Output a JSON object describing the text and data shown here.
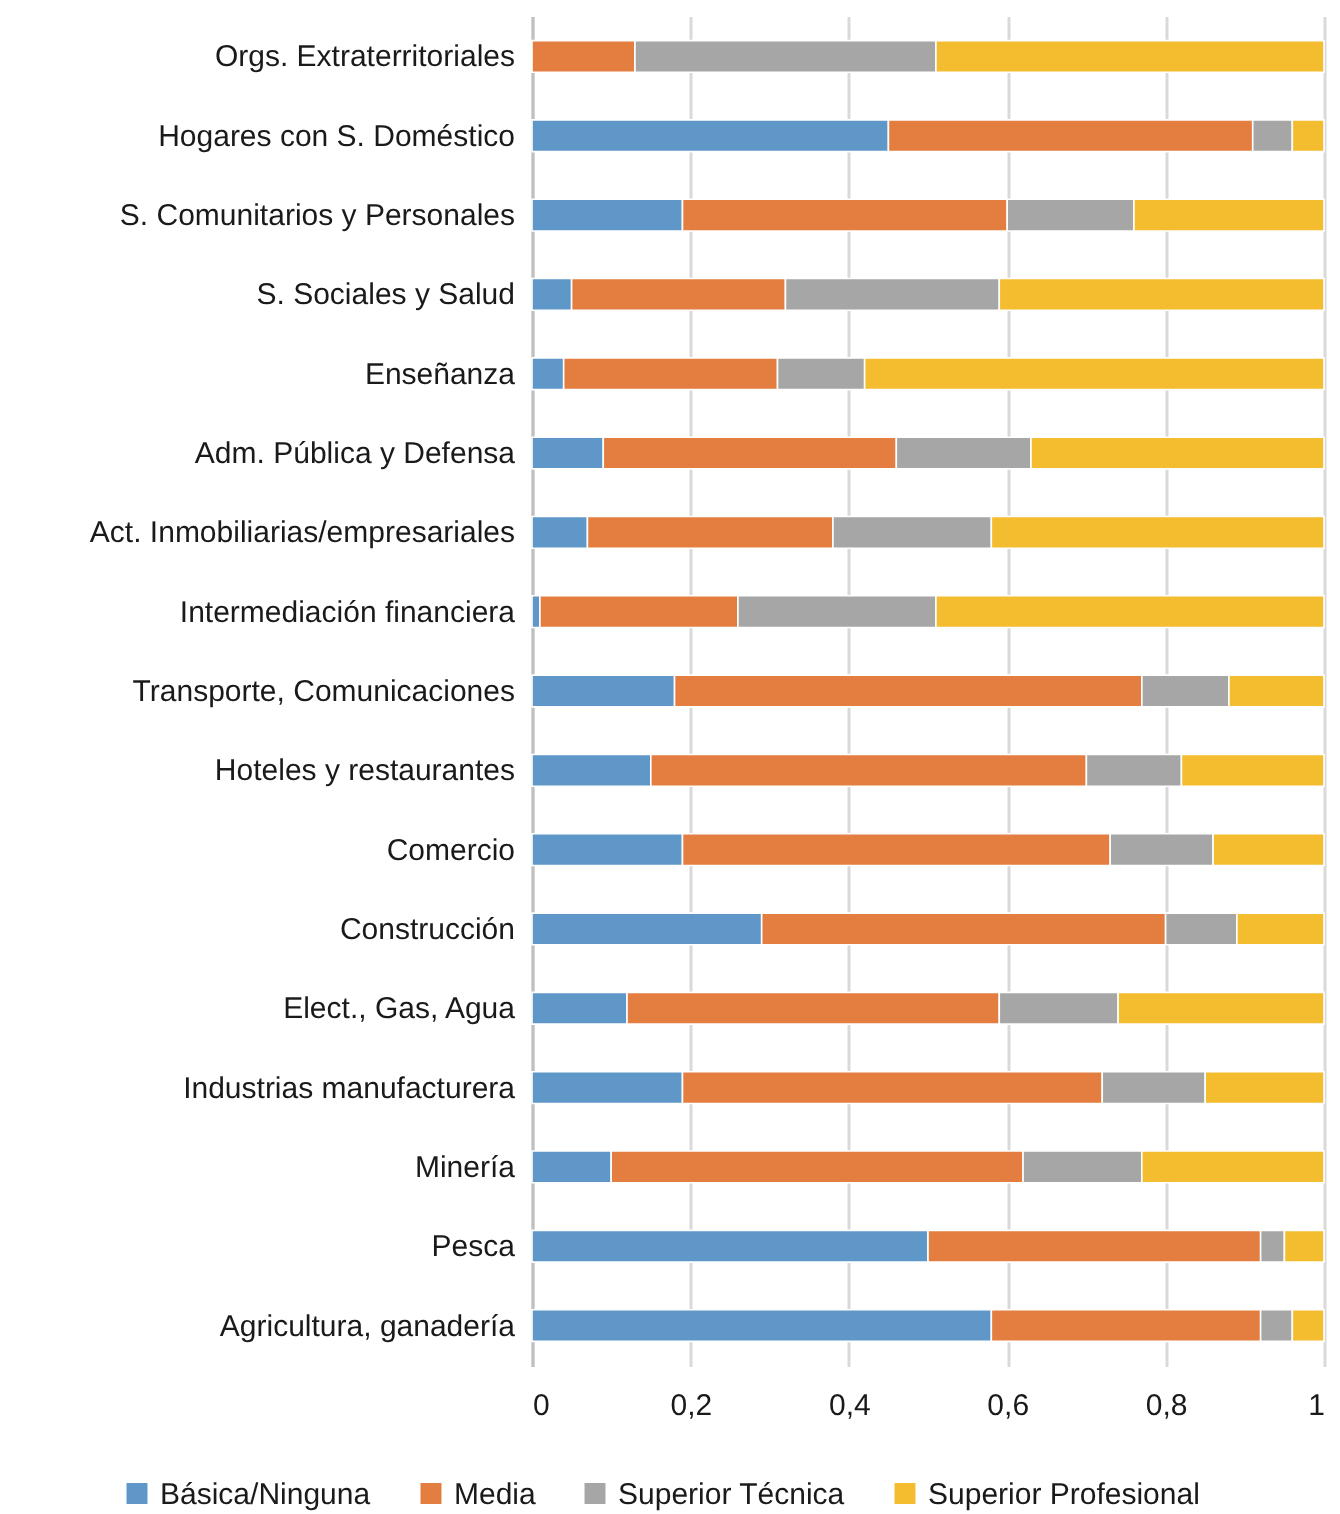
{
  "chart_data": {
    "type": "bar",
    "orientation": "horizontal",
    "stacked": true,
    "categories": [
      "Orgs. Extraterritoriales",
      "Hogares con S. Doméstico",
      "S. Comunitarios y Personales",
      "S. Sociales y Salud",
      "Enseñanza",
      "Adm. Pública y Defensa",
      "Act. Inmobiliarias/empresariales",
      "Intermediación financiera",
      "Transporte, Comunicaciones",
      "Hoteles y restaurantes",
      "Comercio",
      "Construcción",
      "Elect., Gas, Agua",
      "Industrias manufacturera",
      "Minería",
      "Pesca",
      "Agricultura, ganadería"
    ],
    "series": [
      {
        "name": "Básica/Ninguna",
        "color": "#6097c9",
        "values": [
          0,
          0.45,
          0.19,
          0.05,
          0.04,
          0.09,
          0.07,
          0.01,
          0.18,
          0.15,
          0.19,
          0.29,
          0.12,
          0.19,
          0.1,
          0.5,
          0.58
        ]
      },
      {
        "name": "Media",
        "color": "#e37e40",
        "values": [
          0.13,
          0.46,
          0.41,
          0.27,
          0.27,
          0.37,
          0.31,
          0.25,
          0.59,
          0.55,
          0.54,
          0.51,
          0.47,
          0.53,
          0.52,
          0.42,
          0.34
        ]
      },
      {
        "name": "Superior Técnica",
        "color": "#a6a6a7",
        "values": [
          0.38,
          0.05,
          0.16,
          0.27,
          0.11,
          0.17,
          0.2,
          0.25,
          0.11,
          0.12,
          0.13,
          0.09,
          0.15,
          0.13,
          0.15,
          0.03,
          0.04
        ]
      },
      {
        "name": "Superior Profesional",
        "color": "#f4bc2f",
        "values": [
          0.49,
          0.04,
          0.24,
          0.41,
          0.58,
          0.37,
          0.42,
          0.49,
          0.12,
          0.18,
          0.14,
          0.11,
          0.26,
          0.15,
          0.23,
          0.05,
          0.04
        ]
      }
    ],
    "xlim": [
      0,
      1
    ],
    "xticks": [
      0,
      {
        "value": 0.2,
        "label": "0,2"
      },
      {
        "value": 0.4,
        "label": "0,4"
      },
      {
        "value": 0.6,
        "label": "0,6"
      },
      {
        "value": 0.8,
        "label": "0,8"
      },
      1
    ],
    "grid": "x",
    "legend": "bottom"
  }
}
